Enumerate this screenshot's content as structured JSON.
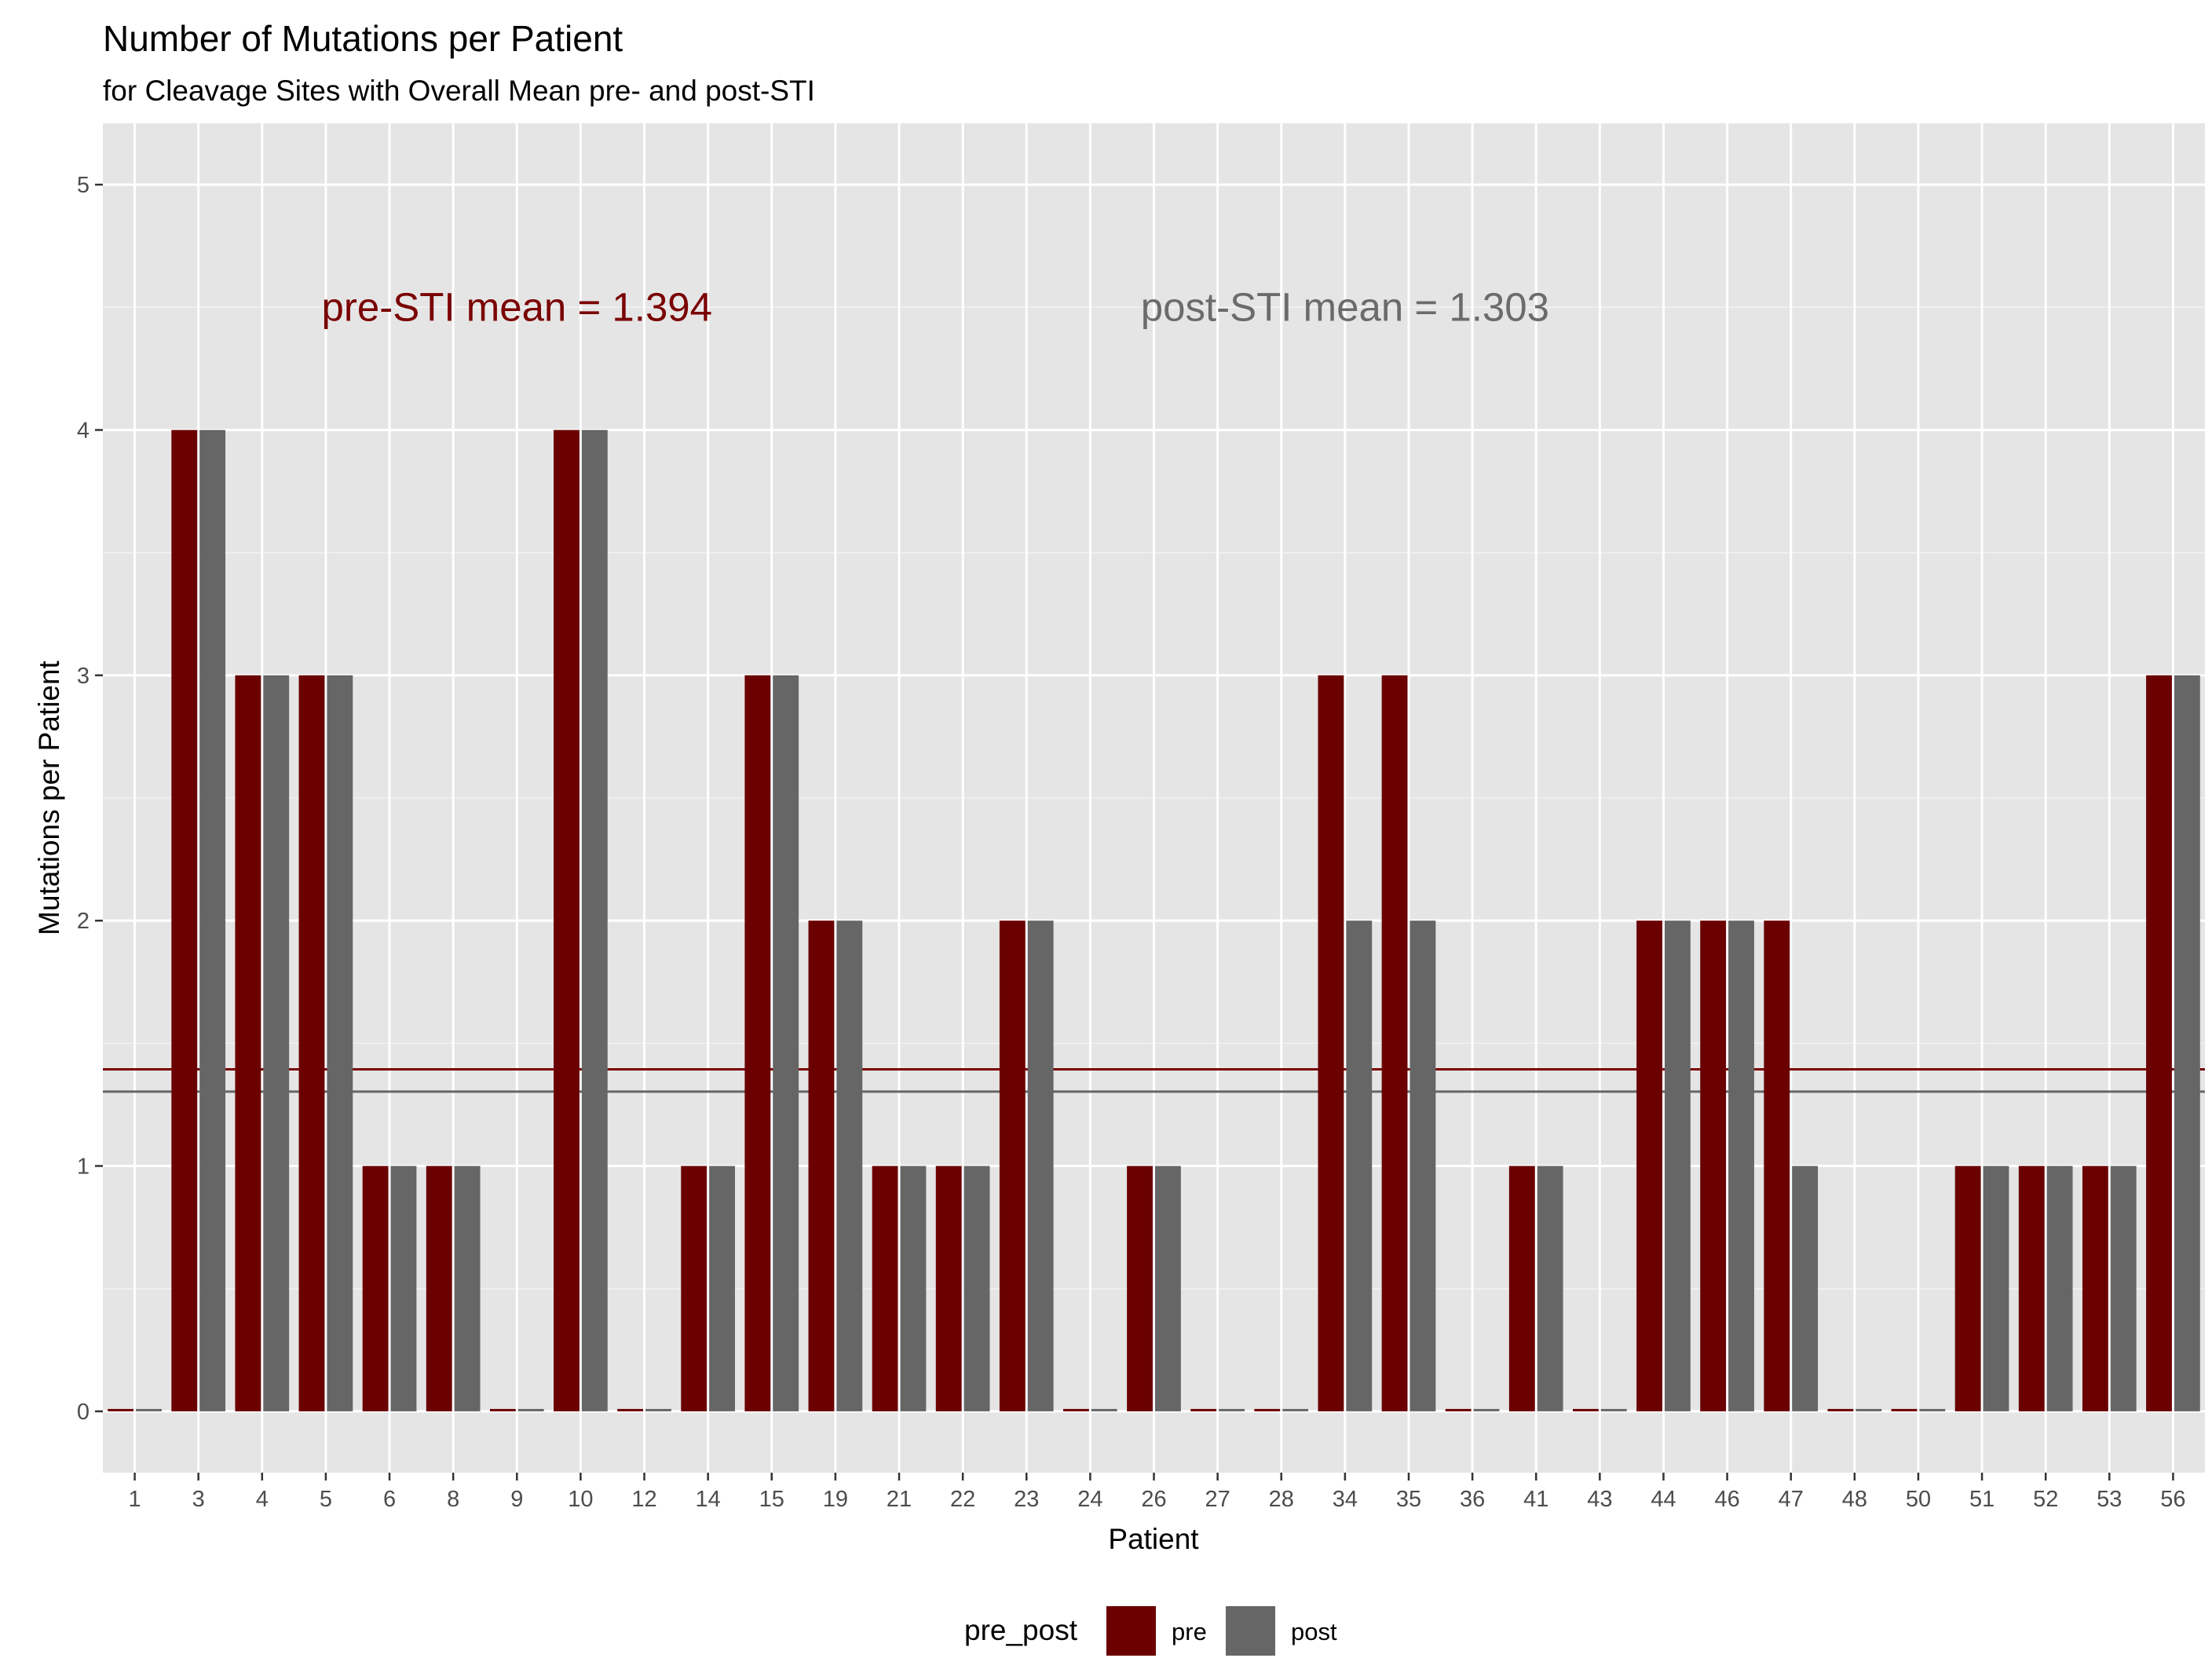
{
  "chart_data": {
    "type": "bar",
    "title": "Number of Mutations per Patient",
    "subtitle": "for Cleavage Sites with Overall Mean pre- and post-STI",
    "xlabel": "Patient",
    "ylabel": "Mutations per Patient",
    "ylim": [
      -0.25,
      5.25
    ],
    "yticks": [
      0,
      1,
      2,
      3,
      4,
      5
    ],
    "categories": [
      "1",
      "3",
      "4",
      "5",
      "6",
      "8",
      "9",
      "10",
      "12",
      "14",
      "15",
      "19",
      "21",
      "22",
      "23",
      "24",
      "26",
      "27",
      "28",
      "34",
      "35",
      "36",
      "41",
      "43",
      "44",
      "46",
      "47",
      "48",
      "50",
      "51",
      "52",
      "53",
      "56"
    ],
    "series": [
      {
        "name": "pre",
        "color": "#6b0000",
        "values": [
          0,
          4,
          3,
          3,
          1,
          1,
          0,
          4,
          0,
          1,
          3,
          2,
          1,
          1,
          2,
          0,
          1,
          0,
          0,
          3,
          3,
          0,
          1,
          0,
          2,
          2,
          2,
          0,
          0,
          1,
          1,
          1,
          3
        ]
      },
      {
        "name": "post",
        "color": "#666666",
        "values": [
          0,
          4,
          3,
          3,
          1,
          1,
          0,
          4,
          0,
          1,
          3,
          2,
          1,
          1,
          2,
          0,
          1,
          0,
          0,
          2,
          2,
          0,
          1,
          0,
          2,
          2,
          1,
          0,
          0,
          1,
          1,
          1,
          3
        ]
      }
    ],
    "reference_lines": [
      {
        "name": "pre-STI mean",
        "value": 1.394,
        "color": "#7a0000"
      },
      {
        "name": "post-STI mean",
        "value": 1.303,
        "color": "#666666"
      }
    ],
    "annotations": [
      {
        "text": "pre-STI mean = 1.394",
        "color": "#7a0000",
        "anchor_category": "9",
        "anchor_y": 4.5
      },
      {
        "text": "post-STI mean = 1.303",
        "color": "#6b6b6b",
        "anchor_category": "34",
        "anchor_y": 4.5
      }
    ],
    "legend": {
      "title": "pre_post",
      "position": "bottom",
      "entries": [
        "pre",
        "post"
      ]
    },
    "grid": true,
    "panel_background": "#e5e5e5"
  }
}
